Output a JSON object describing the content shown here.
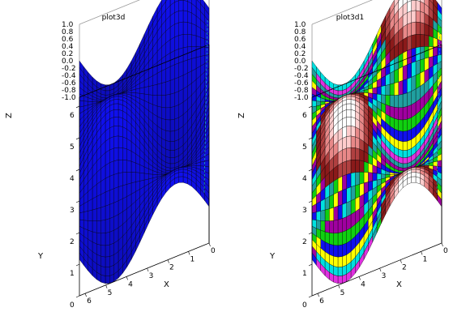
{
  "chart_data": [
    {
      "type": "surface3d",
      "title": "plot3d",
      "xlabel": "X",
      "ylabel": "Y",
      "zlabel": "Z",
      "x_ticks": [
        0,
        1,
        2,
        3,
        4,
        5,
        6
      ],
      "y_ticks": [
        0,
        1,
        2,
        3,
        4,
        5,
        6
      ],
      "z_ticks": [
        "-1.0",
        "-0.8",
        "-0.6",
        "-0.4",
        "-0.2",
        "0.0",
        "0.2",
        "0.4",
        "0.6",
        "0.8",
        "1.0"
      ],
      "xlim": [
        0,
        6.28
      ],
      "ylim": [
        0,
        6.28
      ],
      "zlim": [
        -1,
        1
      ],
      "function": "z = sin(x) * cos(y)",
      "grid_points": 30,
      "surface_color": "#1010ee",
      "mesh_color": "#000000",
      "box": "on"
    },
    {
      "type": "surface3d",
      "title": "plot3d1",
      "xlabel": "X",
      "ylabel": "Y",
      "zlabel": "Z",
      "x_ticks": [
        0,
        1,
        2,
        3,
        4,
        5,
        6
      ],
      "y_ticks": [
        0,
        1,
        2,
        3,
        4,
        5,
        6
      ],
      "z_ticks": [
        "-1.0",
        "-0.8",
        "-0.6",
        "-0.4",
        "-0.2",
        "0.0",
        "0.2",
        "0.4",
        "0.6",
        "0.8",
        "1.0"
      ],
      "xlim": [
        0,
        6.28
      ],
      "ylim": [
        0,
        6.28
      ],
      "zlim": [
        -1,
        1
      ],
      "function": "z = sin(x) * cos(y)",
      "grid_points": 30,
      "colormap": [
        "#ffffff",
        "#ffcccc",
        "#e88888",
        "#b04040",
        "#8b1a1a",
        "#e030e0",
        "#a000a0",
        "#1010ee",
        "#00e0e0",
        "#20a0a0",
        "#10d010",
        "#ffff00"
      ],
      "mesh_color": "#000000",
      "box": "on"
    }
  ]
}
